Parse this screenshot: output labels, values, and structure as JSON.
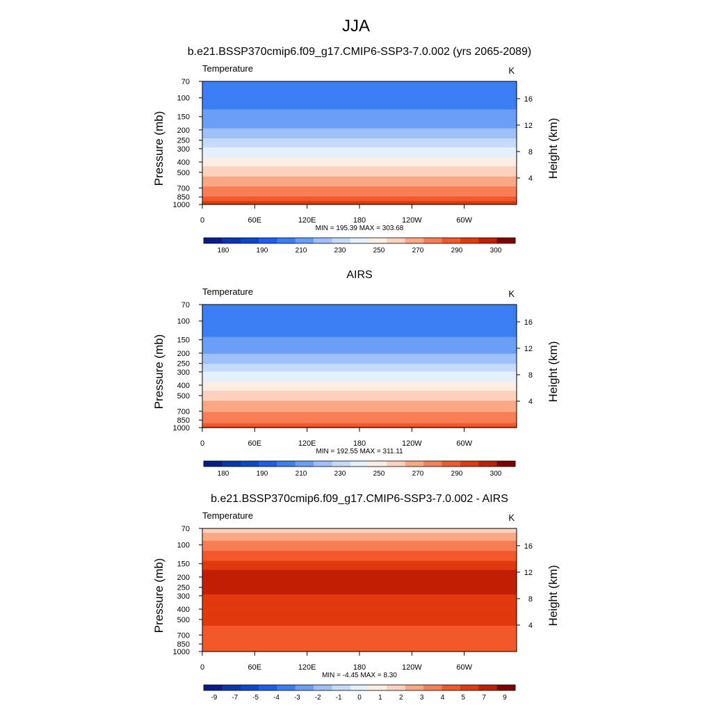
{
  "figure": {
    "title": "JJA"
  },
  "chart_data": [
    {
      "type": "heatmap",
      "title": "b.e21.BSSP370cmip6.f09_g17.CMIP6-SSP3-7.0.002 (yrs 2065-2089)",
      "variable": "Temperature",
      "units": "K",
      "ylabel": "Pressure (mb)",
      "ylabel_right": "Height (km)",
      "pressure_ticks": [
        "70",
        "100",
        "150",
        "200",
        "250",
        "300",
        "400",
        "500",
        "700",
        "850",
        "1000"
      ],
      "pressure_values": [
        70,
        100,
        150,
        200,
        250,
        300,
        400,
        500,
        700,
        850,
        1000
      ],
      "height_ticks": [
        "4",
        "8",
        "12",
        "16"
      ],
      "height_values": [
        4,
        8,
        12,
        16
      ],
      "lon_ticks": [
        "0",
        "60E",
        "120E",
        "180",
        "120W",
        "60W"
      ],
      "lon_values": [
        0,
        60,
        120,
        180,
        240,
        300
      ],
      "xlim": [
        0,
        360
      ],
      "ylim_mb": [
        1000,
        70
      ],
      "stats": "MIN = 195.39  MAX = 303.68",
      "colorbar": {
        "levels": [
          180,
          185,
          190,
          200,
          210,
          220,
          230,
          240,
          250,
          260,
          270,
          280,
          290,
          295,
          300
        ],
        "tick_labels": [
          "180",
          "190",
          "210",
          "230",
          "250",
          "270",
          "290",
          "300"
        ],
        "colors": [
          "#081d8a",
          "#0a35b0",
          "#0d47cc",
          "#1b5ff0",
          "#3c7ff5",
          "#6a9ef7",
          "#9fc0fa",
          "#c6dbfc",
          "#e5f0fd",
          "#fdeee4",
          "#fcd2be",
          "#faa785",
          "#f77e55",
          "#f3582a",
          "#e2390f",
          "#c21f05",
          "#800000"
        ]
      },
      "profile": {
        "p": [
          70,
          85,
          100,
          150,
          200,
          250,
          300,
          400,
          500,
          600,
          700,
          850,
          1000
        ],
        "t": [
          208,
          204,
          205,
          213,
          221,
          232,
          241,
          255,
          266,
          274,
          281,
          290,
          299
        ]
      }
    },
    {
      "type": "heatmap",
      "title": "AIRS",
      "variable": "Temperature",
      "units": "K",
      "ylabel": "Pressure (mb)",
      "ylabel_right": "Height (km)",
      "pressure_ticks": [
        "70",
        "100",
        "150",
        "200",
        "250",
        "300",
        "400",
        "500",
        "700",
        "850",
        "1000"
      ],
      "pressure_values": [
        70,
        100,
        150,
        200,
        250,
        300,
        400,
        500,
        700,
        850,
        1000
      ],
      "height_ticks": [
        "4",
        "8",
        "12",
        "16"
      ],
      "height_values": [
        4,
        8,
        12,
        16
      ],
      "lon_ticks": [
        "0",
        "60E",
        "120E",
        "180",
        "120W",
        "60W"
      ],
      "lon_values": [
        0,
        60,
        120,
        180,
        240,
        300
      ],
      "xlim": [
        0,
        360
      ],
      "ylim_mb": [
        1000,
        70
      ],
      "stats": "MIN = 192.55  MAX = 311.11",
      "colorbar": {
        "levels": [
          180,
          185,
          190,
          200,
          210,
          220,
          230,
          240,
          250,
          260,
          270,
          280,
          290,
          295,
          300
        ],
        "tick_labels": [
          "180",
          "190",
          "210",
          "230",
          "250",
          "270",
          "290",
          "300"
        ],
        "colors": [
          "#081d8a",
          "#0a35b0",
          "#0d47cc",
          "#1b5ff0",
          "#3c7ff5",
          "#6a9ef7",
          "#9fc0fa",
          "#c6dbfc",
          "#e5f0fd",
          "#fdeee4",
          "#fcd2be",
          "#faa785",
          "#f77e55",
          "#f3582a",
          "#e2390f",
          "#c21f05",
          "#800000"
        ]
      },
      "profile": {
        "p": [
          70,
          85,
          100,
          150,
          200,
          250,
          300,
          400,
          500,
          600,
          700,
          850,
          1000
        ],
        "t": [
          207,
          202,
          203,
          211,
          219,
          230,
          240,
          254,
          265,
          273,
          279,
          287,
          296
        ]
      }
    },
    {
      "type": "heatmap",
      "title": "b.e21.BSSP370cmip6.f09_g17.CMIP6-SSP3-7.0.002 - AIRS",
      "variable": "Temperature",
      "units": "K",
      "ylabel": "Pressure (mb)",
      "ylabel_right": "Height (km)",
      "pressure_ticks": [
        "70",
        "100",
        "150",
        "200",
        "250",
        "300",
        "400",
        "500",
        "700",
        "850",
        "1000"
      ],
      "pressure_values": [
        70,
        100,
        150,
        200,
        250,
        300,
        400,
        500,
        700,
        850,
        1000
      ],
      "height_ticks": [
        "4",
        "8",
        "12",
        "16"
      ],
      "height_values": [
        4,
        8,
        12,
        16
      ],
      "lon_ticks": [
        "0",
        "60E",
        "120E",
        "180",
        "120W",
        "60W"
      ],
      "lon_values": [
        0,
        60,
        120,
        180,
        240,
        300
      ],
      "xlim": [
        0,
        360
      ],
      "ylim_mb": [
        1000,
        70
      ],
      "stats": "MIN =  -4.45  MAX =   8.30",
      "colorbar": {
        "levels": [
          -9,
          -8,
          -7,
          -6,
          -5,
          -4,
          -3,
          -2,
          -1,
          0,
          1,
          2,
          3,
          4,
          5,
          7,
          9
        ],
        "tick_labels": [
          "-9",
          "-7",
          "-5",
          "-4",
          "-3",
          "-2",
          "-1",
          "0",
          "1",
          "2",
          "3",
          "4",
          "5",
          "7",
          "9"
        ],
        "colors": [
          "#081d8a",
          "#0a35b0",
          "#0d47cc",
          "#1b5ff0",
          "#3c7ff5",
          "#6a9ef7",
          "#9fc0fa",
          "#c6dbfc",
          "#e5f0fd",
          "#fdeee4",
          "#fcd2be",
          "#faa785",
          "#f77e55",
          "#f3582a",
          "#e2390f",
          "#c21f05",
          "#800000"
        ]
      },
      "profile": {
        "p": [
          70,
          85,
          100,
          130,
          150,
          200,
          250,
          300,
          400,
          500,
          700,
          850,
          1000
        ],
        "t": [
          0.5,
          1.5,
          2.5,
          3.5,
          4.5,
          5.5,
          5.8,
          4.8,
          4.6,
          4.3,
          3.5,
          3.2,
          3.4
        ]
      }
    }
  ]
}
